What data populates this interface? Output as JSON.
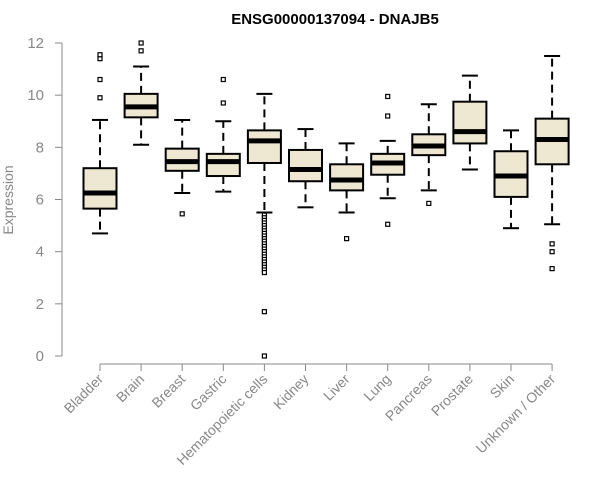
{
  "chart_data": {
    "type": "boxplot",
    "title": "ENSG00000137094 - DNAJB5",
    "ylabel": "Expression",
    "xlabel": "",
    "ylim": [
      0,
      12
    ],
    "yticks": [
      0,
      2,
      4,
      6,
      8,
      10,
      12
    ],
    "grid": false,
    "colors": {
      "box_fill": "#eee8d2",
      "box_stroke": "#000000",
      "axis": "#888888"
    },
    "categories": [
      "Bladder",
      "Brain",
      "Breast",
      "Gastric",
      "Hematopoietic cells",
      "Kidney",
      "Liver",
      "Lung",
      "Pancreas",
      "Prostate",
      "Skin",
      "Unknown / Other"
    ],
    "boxes": [
      {
        "min": 4.7,
        "q1": 5.65,
        "median": 6.25,
        "q3": 7.2,
        "max": 9.05,
        "outliers": [
          9.9,
          10.6,
          11.4,
          11.55
        ]
      },
      {
        "min": 8.1,
        "q1": 9.15,
        "median": 9.55,
        "q3": 10.05,
        "max": 11.1,
        "outliers": [
          11.7,
          12.0
        ]
      },
      {
        "min": 6.25,
        "q1": 7.1,
        "median": 7.45,
        "q3": 7.95,
        "max": 9.05,
        "outliers": [
          5.45
        ]
      },
      {
        "min": 6.3,
        "q1": 6.9,
        "median": 7.45,
        "q3": 7.75,
        "max": 9.0,
        "outliers": [
          9.7,
          10.6
        ]
      },
      {
        "min": 5.5,
        "q1": 7.4,
        "median": 8.25,
        "q3": 8.65,
        "max": 10.05,
        "outliers": [
          5.4,
          5.3,
          5.2,
          5.1,
          5.0,
          4.9,
          4.8,
          4.7,
          4.6,
          4.5,
          4.4,
          4.3,
          4.2,
          4.1,
          4.0,
          3.9,
          3.8,
          3.7,
          3.6,
          3.5,
          3.4,
          3.3,
          3.2,
          1.7,
          0.0
        ]
      },
      {
        "min": 5.7,
        "q1": 6.7,
        "median": 7.15,
        "q3": 7.9,
        "max": 8.7,
        "outliers": []
      },
      {
        "min": 5.5,
        "q1": 6.35,
        "median": 6.75,
        "q3": 7.35,
        "max": 8.15,
        "outliers": [
          4.5
        ]
      },
      {
        "min": 6.05,
        "q1": 6.95,
        "median": 7.4,
        "q3": 7.75,
        "max": 8.25,
        "outliers": [
          5.05,
          9.2,
          9.95
        ]
      },
      {
        "min": 6.35,
        "q1": 7.7,
        "median": 8.05,
        "q3": 8.5,
        "max": 9.65,
        "outliers": [
          5.85
        ]
      },
      {
        "min": 7.15,
        "q1": 8.15,
        "median": 8.6,
        "q3": 9.75,
        "max": 10.75,
        "outliers": []
      },
      {
        "min": 4.9,
        "q1": 6.1,
        "median": 6.9,
        "q3": 7.85,
        "max": 8.65,
        "outliers": []
      },
      {
        "min": 5.05,
        "q1": 7.35,
        "median": 8.3,
        "q3": 9.1,
        "max": 11.5,
        "outliers": [
          4.3,
          4.0,
          3.35
        ]
      }
    ]
  }
}
